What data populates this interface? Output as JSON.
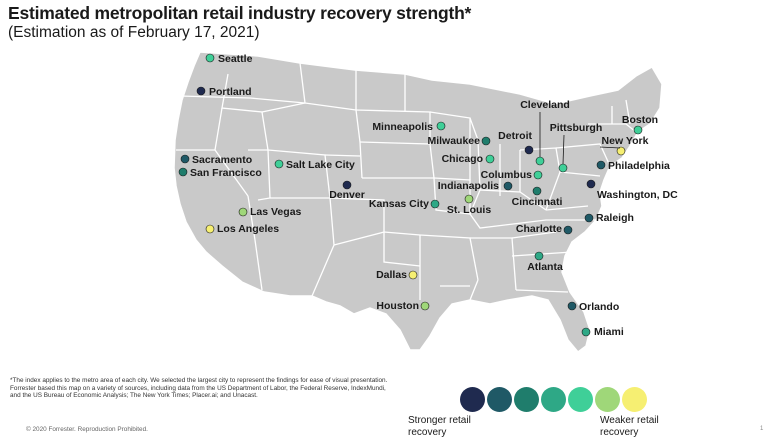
{
  "title": "Estimated metropolitan retail industry recovery strength*",
  "subtitle": "(Estimation as of February 17, 2021)",
  "palette": [
    "#1f2a4f",
    "#1f5966",
    "#1f7d6c",
    "#2ea886",
    "#3fcf98",
    "#9fd779",
    "#f6ef72"
  ],
  "map": {
    "land_color": "#c9c9c9",
    "border_color": "#ffffff",
    "cities": [
      {
        "name": "Seattle",
        "level": 5
      },
      {
        "name": "Portland",
        "level": 1
      },
      {
        "name": "Sacramento",
        "level": 2
      },
      {
        "name": "San Francisco",
        "level": 3
      },
      {
        "name": "Salt Lake City",
        "level": 5
      },
      {
        "name": "Las Vegas",
        "level": 6
      },
      {
        "name": "Los Angeles",
        "level": 7
      },
      {
        "name": "Denver",
        "level": 1
      },
      {
        "name": "Minneapolis",
        "level": 5
      },
      {
        "name": "Milwaukee",
        "level": 3
      },
      {
        "name": "Chicago",
        "level": 5
      },
      {
        "name": "Kansas City",
        "level": 4
      },
      {
        "name": "St. Louis",
        "level": 6
      },
      {
        "name": "Detroit",
        "level": 1
      },
      {
        "name": "Cleveland",
        "level": 5
      },
      {
        "name": "Columbus",
        "level": 5
      },
      {
        "name": "Indianapolis",
        "level": 2
      },
      {
        "name": "Cincinnati",
        "level": 3
      },
      {
        "name": "Pittsburgh",
        "level": 5
      },
      {
        "name": "Boston",
        "level": 5
      },
      {
        "name": "New York",
        "level": 7
      },
      {
        "name": "Philadelphia",
        "level": 2
      },
      {
        "name": "Washington, DC",
        "level": 1
      },
      {
        "name": "Raleigh",
        "level": 2
      },
      {
        "name": "Charlotte",
        "level": 2
      },
      {
        "name": "Atlanta",
        "level": 4
      },
      {
        "name": "Dallas",
        "level": 7
      },
      {
        "name": "Houston",
        "level": 6
      },
      {
        "name": "Orlando",
        "level": 2
      },
      {
        "name": "Miami",
        "level": 4
      }
    ]
  },
  "legend": {
    "levels": 7,
    "strong_label": "Stronger retail recovery",
    "weak_label": "Weaker retail recovery"
  },
  "footnote": {
    "line1": "*The index applies to the metro area of each city. We selected the largest city to represent the findings for ease of visual presentation.",
    "line2": "Forrester based this map on a variety of sources, including data from the US Department of Labor, the Federal Reserve, IndexMundi, and the US Bureau of Economic Analysis; The New York Times; Placer.ai; and Unacast."
  },
  "copyright": "© 2020 Forrester. Reproduction Prohibited.",
  "page_number": "1"
}
